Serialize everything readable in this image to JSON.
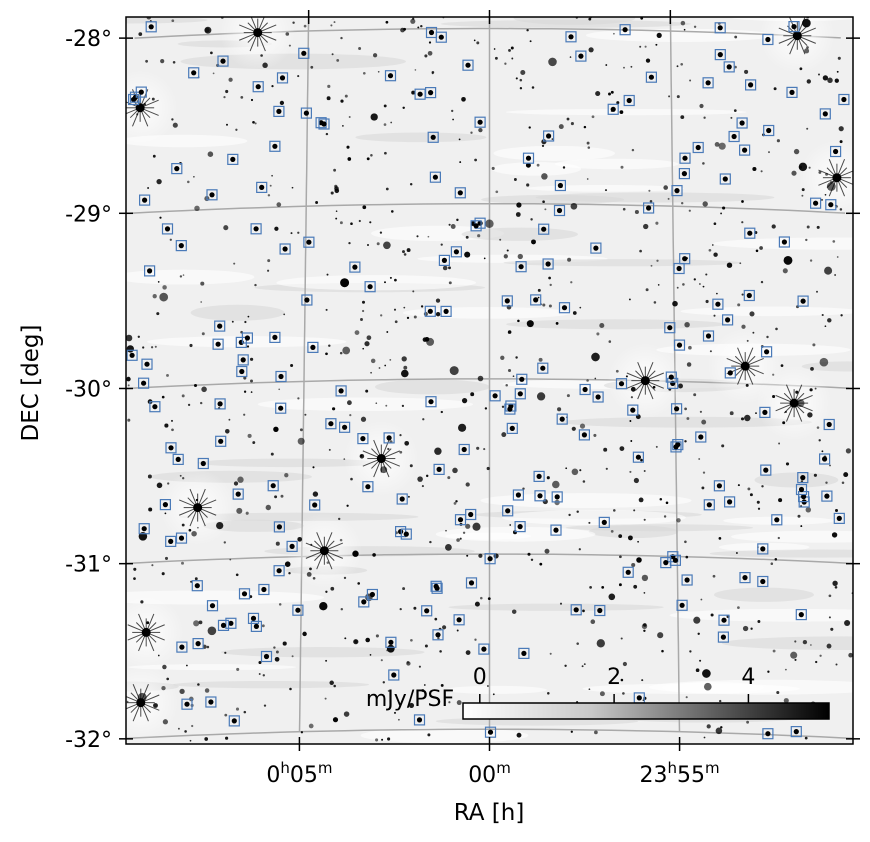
{
  "axes": {
    "x_title": "RA [h]",
    "y_title": "DEC [deg]",
    "x_ticks": [
      {
        "label_h": "0",
        "label_m": "05",
        "ra_min": 5
      },
      {
        "label_h": "",
        "label_m": "00",
        "ra_min": 0
      },
      {
        "label_h": "23",
        "label_m": "55",
        "ra_min": -5
      }
    ],
    "y_ticks": [
      {
        "label": "-28°",
        "dec": -28
      },
      {
        "label": "-29°",
        "dec": -29
      },
      {
        "label": "-30°",
        "dec": -30
      },
      {
        "label": "-31°",
        "dec": -31
      },
      {
        "label": "-32°",
        "dec": -32
      }
    ],
    "h_sup": "h",
    "m_sup": "m",
    "ra_range_min": [
      9.8,
      -9.8
    ],
    "dec_range": [
      -27.9,
      -32.05
    ]
  },
  "colorbar": {
    "label": "mJy/PSF",
    "ticks": [
      {
        "label": "0",
        "value": 0
      },
      {
        "label": "2",
        "value": 2
      },
      {
        "label": "4",
        "value": 4
      }
    ],
    "range": [
      -0.25,
      5.2
    ],
    "colormap": "white-to-black"
  },
  "colors": {
    "background": "#f0f0f0",
    "grid": "#a9a9a9",
    "marker": "#4a7ab8",
    "source": "#000000"
  },
  "bright_sources": [
    {
      "ra_min": 6.4,
      "dec": -28.0
    },
    {
      "ra_min": -8.5,
      "dec": -28.0
    },
    {
      "ra_min": 9.6,
      "dec": -28.4
    },
    {
      "ra_min": -9.5,
      "dec": -28.8
    },
    {
      "ra_min": 7.8,
      "dec": -30.7
    },
    {
      "ra_min": 4.4,
      "dec": -30.97
    },
    {
      "ra_min": 9.1,
      "dec": -31.4
    },
    {
      "ra_min": 9.2,
      "dec": -31.8
    },
    {
      "ra_min": -4.2,
      "dec": -30.0
    },
    {
      "ra_min": -6.9,
      "dec": -29.9
    },
    {
      "ra_min": -8.2,
      "dec": -30.1
    },
    {
      "ra_min": 2.9,
      "dec": -30.45
    }
  ]
}
